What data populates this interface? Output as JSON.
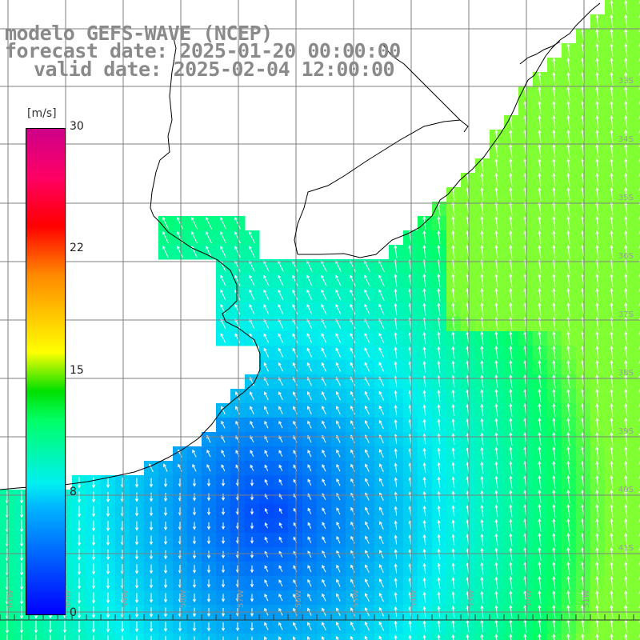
{
  "title": {
    "line1": "modelo GEFS-WAVE (NCEP)",
    "line2": "forecast date: 2025-01-20 00:00:00",
    "line3": "valid date: 2025-02-04 12:00:00"
  },
  "colorbar": {
    "unit": "[m/s]",
    "ticks": [
      "30",
      "22",
      "15",
      "8",
      "0"
    ],
    "stops": [
      {
        "value": 0,
        "color": "#0000ff"
      },
      {
        "value": 8,
        "color": "#00f0f0"
      },
      {
        "value": 12,
        "color": "#00ff66"
      },
      {
        "value": 15,
        "color": "#ffff00"
      },
      {
        "value": 22,
        "color": "#ff8800"
      },
      {
        "value": 25,
        "color": "#ff0000"
      },
      {
        "value": 30,
        "color": "#cc0088"
      }
    ]
  },
  "map": {
    "field": "wind speed with direction arrows",
    "lat_labels": [
      "33S",
      "34S",
      "35S",
      "36S",
      "37S",
      "38S",
      "39S",
      "40S",
      "41S"
    ],
    "lon_labels": [
      "61W",
      "60W",
      "59W",
      "58W",
      "57W",
      "56W",
      "55W",
      "54W",
      "53W",
      "52W",
      "51W"
    ],
    "colors": {
      "land": "#ffffff",
      "coast": "#000000",
      "grid": "#7f7f7f",
      "arrow": "#ffffff",
      "label": "#9a9a9a"
    }
  }
}
